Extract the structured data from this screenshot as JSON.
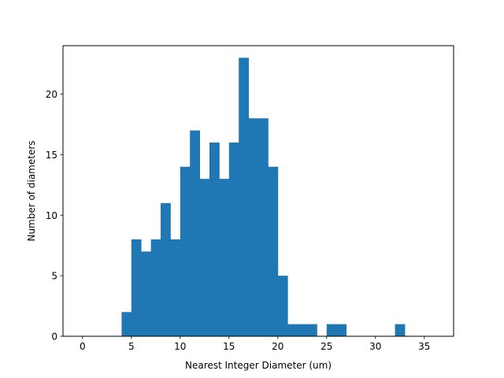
{
  "chart_data": {
    "type": "bar",
    "title": "",
    "xlabel": "Nearest Integer Diameter (um)",
    "ylabel": "Number of diameters",
    "xlim": [
      -2,
      38
    ],
    "ylim": [
      0,
      24
    ],
    "xticks": [
      0,
      5,
      10,
      15,
      20,
      25,
      30,
      35
    ],
    "yticks": [
      0,
      5,
      10,
      15,
      20
    ],
    "bin_width": 1,
    "bins": [
      {
        "x0": 4,
        "count": 2
      },
      {
        "x0": 5,
        "count": 8
      },
      {
        "x0": 6,
        "count": 7
      },
      {
        "x0": 7,
        "count": 8
      },
      {
        "x0": 8,
        "count": 11
      },
      {
        "x0": 9,
        "count": 8
      },
      {
        "x0": 10,
        "count": 14
      },
      {
        "x0": 11,
        "count": 17
      },
      {
        "x0": 12,
        "count": 13
      },
      {
        "x0": 13,
        "count": 16
      },
      {
        "x0": 14,
        "count": 13
      },
      {
        "x0": 15,
        "count": 16
      },
      {
        "x0": 16,
        "count": 23
      },
      {
        "x0": 17,
        "count": 18
      },
      {
        "x0": 18,
        "count": 18
      },
      {
        "x0": 19,
        "count": 14
      },
      {
        "x0": 20,
        "count": 5
      },
      {
        "x0": 21,
        "count": 1
      },
      {
        "x0": 22,
        "count": 1
      },
      {
        "x0": 23,
        "count": 1
      },
      {
        "x0": 25,
        "count": 1
      },
      {
        "x0": 26,
        "count": 1
      },
      {
        "x0": 32,
        "count": 1
      }
    ],
    "bar_color": "#1f77b4",
    "grid": false,
    "legend": false
  }
}
